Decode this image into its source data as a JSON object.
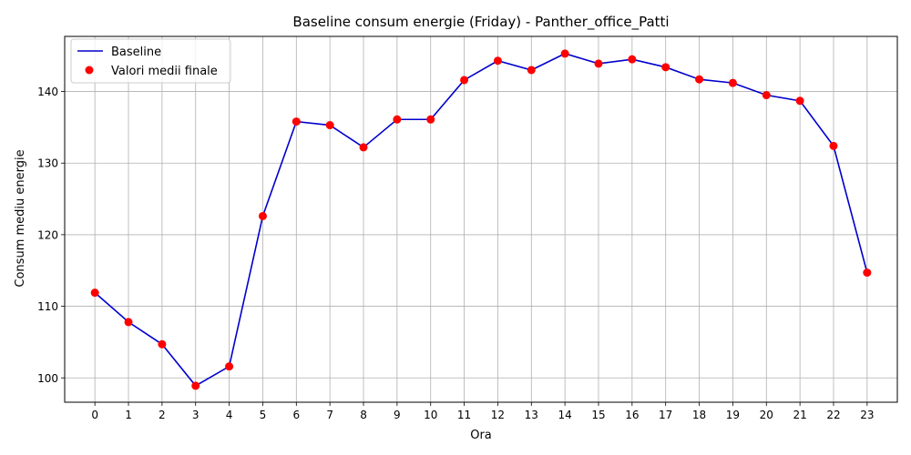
{
  "chart_data": {
    "type": "line",
    "title": "Baseline consum energie (Friday) - Panther_office_Patti",
    "xlabel": "Ora",
    "ylabel": "Consum mediu energie",
    "x": [
      0,
      1,
      2,
      3,
      4,
      5,
      6,
      7,
      8,
      9,
      10,
      11,
      12,
      13,
      14,
      15,
      16,
      17,
      18,
      19,
      20,
      21,
      22,
      23
    ],
    "x_tick_labels": [
      "0",
      "1",
      "2",
      "3",
      "4",
      "5",
      "6",
      "7",
      "8",
      "9",
      "10",
      "11",
      "12",
      "13",
      "14",
      "15",
      "16",
      "17",
      "18",
      "19",
      "20",
      "21",
      "22",
      "23"
    ],
    "xlim": [
      -0.9,
      23.9
    ],
    "ylim": [
      96.6,
      147.7
    ],
    "y_ticks": [
      100,
      110,
      120,
      130,
      140
    ],
    "y_tick_labels": [
      "100",
      "110",
      "120",
      "130",
      "140"
    ],
    "grid": true,
    "legend_position": "top-left",
    "series": [
      {
        "name": "Baseline",
        "kind": "line",
        "color": "#0000cc",
        "values": [
          111.9,
          107.8,
          104.7,
          98.9,
          101.6,
          122.6,
          135.8,
          135.3,
          132.2,
          136.1,
          136.1,
          141.6,
          144.3,
          143.0,
          145.3,
          143.9,
          144.5,
          143.4,
          141.7,
          141.2,
          139.5,
          138.7,
          132.4,
          114.7
        ]
      },
      {
        "name": "Valori medii finale",
        "kind": "scatter",
        "color": "#ff0000",
        "values": [
          111.9,
          107.8,
          104.7,
          98.9,
          101.6,
          122.6,
          135.8,
          135.3,
          132.2,
          136.1,
          136.1,
          141.6,
          144.3,
          143.0,
          145.3,
          143.9,
          144.5,
          143.4,
          141.7,
          141.2,
          139.5,
          138.7,
          132.4,
          114.7
        ]
      }
    ]
  }
}
